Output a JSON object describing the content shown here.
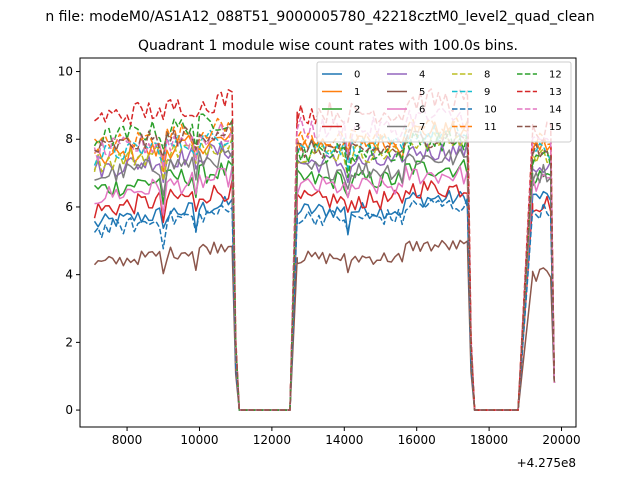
{
  "chart_data": {
    "type": "line",
    "suptitle": "n file: modeM0/AS1A12_088T51_9000005780_42218cztM0_level2_quad_clean",
    "title": "Quadrant 1 module wise count rates with 100.0s bins.",
    "xlabel": "",
    "ylabel": "",
    "x_offset_label": "+4.275e8",
    "xlim": [
      6700,
      20400
    ],
    "ylim": [
      -0.5,
      10.4
    ],
    "x_ticks": [
      8000,
      10000,
      12000,
      14000,
      16000,
      18000,
      20000
    ],
    "x_tick_labels": [
      "8000",
      "10000",
      "12000",
      "14000",
      "16000",
      "18000",
      "20000"
    ],
    "y_ticks": [
      0,
      2,
      4,
      6,
      8,
      10
    ],
    "y_tick_labels": [
      "0",
      "2",
      "4",
      "6",
      "8",
      "10"
    ],
    "grid": false,
    "legend_position": "top-right",
    "x_step": 100,
    "segments": [
      {
        "start": 7100,
        "end": 10900,
        "gaps": [
          9000,
          9900
        ]
      },
      {
        "start": 12700,
        "end": 17400,
        "gaps": [
          14100,
          15600
        ]
      },
      {
        "start": 19200,
        "end": 19700,
        "gaps": []
      }
    ],
    "drops": [
      {
        "from": 10900,
        "bottom": 11000,
        "zero_start": 11100,
        "zero_end": 12500,
        "rise_end": 12700
      },
      {
        "from": 17400,
        "bottom": 17500,
        "zero_start": 17600,
        "zero_end": 18800,
        "rise_end": 19200
      }
    ],
    "final_point": {
      "x": 19800,
      "value": 0.8
    },
    "series": [
      {
        "name": "0",
        "color": "#1f77b4",
        "dash": "solid",
        "base": 5.5,
        "base2": 5.9,
        "base3": 6.3,
        "amp": 0.25
      },
      {
        "name": "1",
        "color": "#ff7f0e",
        "dash": "solid",
        "base": 7.4,
        "base2": 7.9,
        "base3": 7.8,
        "amp": 0.3
      },
      {
        "name": "2",
        "color": "#2ca02c",
        "dash": "solid",
        "base": 6.5,
        "base2": 6.8,
        "base3": 6.9,
        "amp": 0.3
      },
      {
        "name": "3",
        "color": "#d62728",
        "dash": "solid",
        "base": 5.9,
        "base2": 6.2,
        "base3": 6.1,
        "amp": 0.3
      },
      {
        "name": "4",
        "color": "#9467bd",
        "dash": "solid",
        "base": 7.1,
        "base2": 7.3,
        "base3": 7.2,
        "amp": 0.3
      },
      {
        "name": "5",
        "color": "#8c564b",
        "dash": "solid",
        "base": 4.3,
        "base2": 4.5,
        "base3": 4.0,
        "amp": 0.2
      },
      {
        "name": "6",
        "color": "#e377c2",
        "dash": "solid",
        "base": 6.3,
        "base2": 6.6,
        "base3": 6.7,
        "amp": 0.3
      },
      {
        "name": "7",
        "color": "#7f7f7f",
        "dash": "solid",
        "base": 6.9,
        "base2": 7.1,
        "base3": 7.0,
        "amp": 0.3
      },
      {
        "name": "8",
        "color": "#bcbd22",
        "dash": "dashed",
        "base": 7.3,
        "base2": 7.6,
        "base3": 7.5,
        "amp": 0.3
      },
      {
        "name": "9",
        "color": "#17becf",
        "dash": "dashed",
        "base": 7.5,
        "base2": 7.8,
        "base3": 7.6,
        "amp": 0.3
      },
      {
        "name": "10",
        "color": "#1f77b4",
        "dash": "dashed",
        "base": 5.3,
        "base2": 5.7,
        "base3": 5.9,
        "amp": 0.25
      },
      {
        "name": "11",
        "color": "#ff7f0e",
        "dash": "dashed",
        "base": 7.8,
        "base2": 8.0,
        "base3": 7.9,
        "amp": 0.3
      },
      {
        "name": "12",
        "color": "#2ca02c",
        "dash": "dashed",
        "base": 8.0,
        "base2": 7.6,
        "base3": 7.4,
        "amp": 0.3
      },
      {
        "name": "13",
        "color": "#d62728",
        "dash": "dashed",
        "base": 8.6,
        "base2": 8.8,
        "base3": 8.2,
        "amp": 0.35
      },
      {
        "name": "14",
        "color": "#e377c2",
        "dash": "dashed",
        "base": 7.6,
        "base2": 8.3,
        "base3": 7.9,
        "amp": 0.35
      },
      {
        "name": "15",
        "color": "#8c564b",
        "dash": "dashed",
        "base": 7.7,
        "base2": 7.7,
        "base3": 7.6,
        "amp": 0.3
      }
    ]
  }
}
